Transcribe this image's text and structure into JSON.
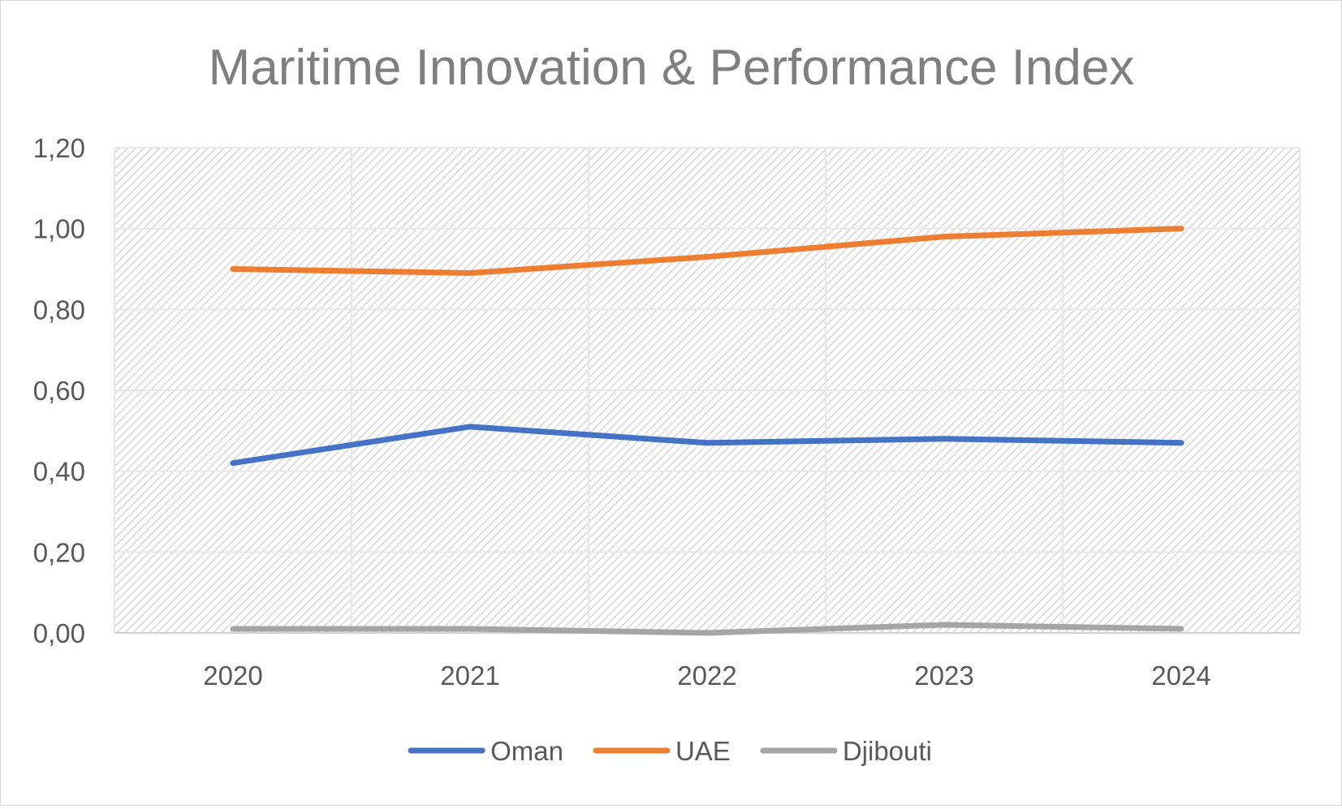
{
  "chart_data": {
    "type": "line",
    "title": "Maritime Innovation & Performance Index",
    "xlabel": "",
    "ylabel": "",
    "categories": [
      "2020",
      "2021",
      "2022",
      "2023",
      "2024"
    ],
    "series": [
      {
        "name": "Oman",
        "color": "#4472C4",
        "values": [
          0.42,
          0.51,
          0.47,
          0.48,
          0.47
        ]
      },
      {
        "name": "UAE",
        "color": "#ED7D31",
        "values": [
          0.9,
          0.89,
          0.93,
          0.98,
          1.0
        ]
      },
      {
        "name": "Djibouti",
        "color": "#A5A5A5",
        "values": [
          0.01,
          0.01,
          0.0,
          0.02,
          0.01
        ]
      }
    ],
    "yticks": [
      "0,00",
      "0,20",
      "0,40",
      "0,60",
      "0,80",
      "1,00",
      "1,20"
    ],
    "ylim": [
      0,
      1.2
    ],
    "grid": true,
    "legend_position": "bottom"
  }
}
